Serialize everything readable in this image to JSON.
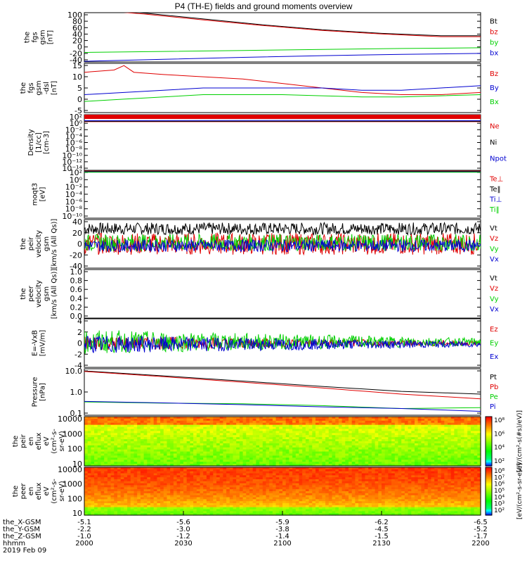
{
  "title": "P4 (TH-E) fields and ground moments overview",
  "colors": {
    "black": "#000000",
    "red": "#e00000",
    "green": "#00d000",
    "blue": "#0000d0"
  },
  "chart_data": [
    {
      "type": "line",
      "panel": "fgs",
      "ylabel": [
        "the",
        "fgs",
        "gsm",
        "[nT]"
      ],
      "ytick_labels": [
        "100",
        "80",
        "60",
        "40",
        "20",
        "0",
        "-20",
        "-40"
      ],
      "ylim": [
        -45,
        105
      ],
      "series": [
        {
          "name": "Bt",
          "color": "black",
          "points": [
            [
              0,
              118
            ],
            [
              30,
              104
            ],
            [
              60,
              86
            ],
            [
              90,
              68
            ],
            [
              120,
              53
            ],
            [
              150,
              42
            ],
            [
              180,
              35
            ],
            [
              200,
              35
            ]
          ]
        },
        {
          "name": "bz",
          "color": "red",
          "points": [
            [
              0,
              116
            ],
            [
              30,
              101
            ],
            [
              60,
              83
            ],
            [
              90,
              66
            ],
            [
              120,
              51
            ],
            [
              150,
              40
            ],
            [
              180,
              32
            ],
            [
              200,
              32
            ]
          ]
        },
        {
          "name": "by",
          "color": "green",
          "points": [
            [
              0,
              -16
            ],
            [
              40,
              -13
            ],
            [
              80,
              -10
            ],
            [
              120,
              -7
            ],
            [
              160,
              -4
            ],
            [
              200,
              -2
            ]
          ]
        },
        {
          "name": "bx",
          "color": "blue",
          "points": [
            [
              0,
              -43
            ],
            [
              40,
              -37
            ],
            [
              80,
              -31
            ],
            [
              120,
              -26
            ],
            [
              160,
              -22
            ],
            [
              200,
              -19
            ]
          ]
        }
      ]
    },
    {
      "type": "line",
      "panel": "fgs-dsl",
      "ylabel": [
        "the",
        "fgs",
        "gsm",
        "-dsl",
        "[nT]"
      ],
      "ytick_labels": [
        "15",
        "10",
        "5",
        "0",
        "-5"
      ],
      "ylim": [
        -6,
        16
      ],
      "series": [
        {
          "name": "Bz",
          "color": "red",
          "points": [
            [
              0,
              12
            ],
            [
              15,
              13
            ],
            [
              20,
              15
            ],
            [
              25,
              12
            ],
            [
              40,
              11
            ],
            [
              60,
              10
            ],
            [
              80,
              9
            ],
            [
              100,
              7
            ],
            [
              120,
              5
            ],
            [
              140,
              3
            ],
            [
              160,
              2
            ],
            [
              180,
              2
            ],
            [
              200,
              3
            ]
          ]
        },
        {
          "name": "By",
          "color": "blue",
          "points": [
            [
              0,
              2
            ],
            [
              20,
              3
            ],
            [
              40,
              4
            ],
            [
              60,
              5
            ],
            [
              80,
              5
            ],
            [
              100,
              5
            ],
            [
              120,
              5
            ],
            [
              140,
              4
            ],
            [
              160,
              4
            ],
            [
              180,
              5
            ],
            [
              200,
              6
            ]
          ]
        },
        {
          "name": "Bx",
          "color": "green",
          "points": [
            [
              0,
              -1
            ],
            [
              20,
              0
            ],
            [
              40,
              1
            ],
            [
              60,
              2
            ],
            [
              80,
              2
            ],
            [
              100,
              2
            ],
            [
              120,
              1.5
            ],
            [
              140,
              1
            ],
            [
              160,
              1
            ],
            [
              180,
              1.5
            ],
            [
              200,
              2
            ]
          ]
        }
      ]
    },
    {
      "type": "line",
      "panel": "density",
      "ylabel": [
        "Density",
        "[1/cc]",
        "[cm-3]"
      ],
      "ytick_labels": [
        "10²",
        "10⁰",
        "10⁻²",
        "10⁻⁴",
        "10⁻⁶",
        "10⁻⁸",
        "10⁻¹⁰",
        "10⁻¹²",
        "10⁻¹⁴"
      ],
      "log": true,
      "ylim_log10": [
        -14,
        2
      ],
      "series": [
        {
          "name": "Ne",
          "color": "red",
          "points": [
            [
              0,
              0
            ],
            [
              200,
              0
            ]
          ]
        },
        {
          "name": "Ni",
          "color": "black",
          "points": [
            [
              0,
              0.1
            ],
            [
              200,
              0.1
            ]
          ]
        },
        {
          "name": "Npot",
          "color": "blue",
          "points": [
            [
              0,
              0.3
            ],
            [
              100,
              0.35
            ],
            [
              200,
              0.3
            ]
          ]
        }
      ]
    },
    {
      "type": "line",
      "panel": "temperature",
      "ylabel": [
        "moqt3",
        "[eV]"
      ],
      "ytick_labels": [
        "10²",
        "10⁰",
        "10⁻²",
        "10⁻⁴",
        "10⁻⁶",
        "10⁻⁸",
        "10⁻¹⁰"
      ],
      "log": true,
      "ylim_log10": [
        -10,
        2
      ],
      "series": [
        {
          "name": "Te⊥",
          "color": "red",
          "points": [
            [
              0,
              1.8
            ],
            [
              200,
              1.8
            ]
          ]
        },
        {
          "name": "Te‖",
          "color": "black",
          "points": [
            [
              0,
              1.7
            ],
            [
              200,
              1.7
            ]
          ]
        },
        {
          "name": "Ti⊥",
          "color": "blue",
          "points": [
            [
              0,
              1.6
            ],
            [
              200,
              1.6
            ]
          ]
        },
        {
          "name": "Ti‖",
          "color": "green",
          "points": [
            [
              0,
              1.5
            ],
            [
              200,
              1.5
            ]
          ]
        }
      ]
    },
    {
      "type": "line",
      "panel": "peir velocity",
      "ylabel": [
        "the",
        "peir",
        "velocity",
        "gsm",
        "[km/s (All Qs)]"
      ],
      "ytick_labels": [
        "40",
        "20",
        "0",
        "-20",
        "-40"
      ],
      "ylim": [
        -40,
        40
      ],
      "series": [
        {
          "name": "Vt",
          "color": "black",
          "mean": 25,
          "amp": 10
        },
        {
          "name": "Vz",
          "color": "red",
          "mean": 0,
          "amp": 18
        },
        {
          "name": "Vy",
          "color": "green",
          "mean": 2,
          "amp": 14
        },
        {
          "name": "Vx",
          "color": "blue",
          "mean": -3,
          "amp": 10
        }
      ]
    },
    {
      "type": "line",
      "panel": "peer velocity",
      "ylabel": [
        "the",
        "peer",
        "velocity",
        "gsm",
        "[km/s (All Qs)]"
      ],
      "ytick_labels": [
        "1.0",
        "0.8",
        "0.6",
        "0.4",
        "0.2",
        "0.0"
      ],
      "ylim": [
        0,
        1
      ],
      "series": [
        {
          "name": "Vt",
          "color": "black"
        },
        {
          "name": "Vz",
          "color": "red"
        },
        {
          "name": "Vy",
          "color": "green"
        },
        {
          "name": "Vx",
          "color": "blue"
        }
      ]
    },
    {
      "type": "line",
      "panel": "E=-VxB",
      "ylabel": [
        "E=-VxB",
        "[mV/m]"
      ],
      "ytick_labels": [
        "4",
        "2",
        "0",
        "-2",
        "-4"
      ],
      "ylim": [
        -4,
        4
      ],
      "series": [
        {
          "name": "Ez",
          "color": "red",
          "mean": 0,
          "amp": 1.2
        },
        {
          "name": "Ey",
          "color": "green",
          "mean": 0.2,
          "amp": 2.0
        },
        {
          "name": "Ex",
          "color": "blue",
          "mean": -0.2,
          "amp": 1.5
        }
      ]
    },
    {
      "type": "line",
      "panel": "pressure",
      "ylabel": [
        "Pressure",
        "[nPa]"
      ],
      "ytick_labels": [
        "10.0",
        "1.0",
        "0.1"
      ],
      "log": true,
      "ylim_log10": [
        -1,
        1.1
      ],
      "series": [
        {
          "name": "Pt",
          "color": "black",
          "points": [
            [
              0,
              10
            ],
            [
              40,
              6
            ],
            [
              80,
              3.5
            ],
            [
              120,
              2
            ],
            [
              160,
              1.2
            ],
            [
              200,
              0.9
            ]
          ]
        },
        {
          "name": "Pb",
          "color": "red",
          "points": [
            [
              0,
              9.5
            ],
            [
              40,
              5.5
            ],
            [
              80,
              3.1
            ],
            [
              120,
              1.7
            ],
            [
              160,
              0.9
            ],
            [
              200,
              0.55
            ]
          ]
        },
        {
          "name": "Pe",
          "color": "green",
          "points": [
            [
              0,
              0.4
            ],
            [
              40,
              0.35
            ],
            [
              80,
              0.33
            ],
            [
              120,
              0.27
            ],
            [
              160,
              0.2
            ],
            [
              200,
              0.22
            ]
          ]
        },
        {
          "name": "Pi",
          "color": "blue",
          "points": [
            [
              0,
              0.42
            ],
            [
              40,
              0.36
            ],
            [
              80,
              0.3
            ],
            [
              120,
              0.24
            ],
            [
              160,
              0.2
            ],
            [
              200,
              0.15
            ]
          ]
        }
      ]
    },
    {
      "type": "heatmap",
      "panel": "peir en eflux",
      "ylabel": [
        "the",
        "peir",
        "en",
        "eflux",
        "eV",
        "(cm²-s-",
        "sr-eV)"
      ],
      "ytick_labels": [
        "10000",
        "1000",
        "100",
        "10"
      ]
    },
    {
      "type": "heatmap",
      "panel": "peer en eflux",
      "ylabel": [
        "the",
        "peer",
        "en",
        "eflux",
        "eV",
        "(cm²-s-",
        "sr-eV)"
      ],
      "ytick_labels": [
        "10000",
        "1000",
        "100",
        "10"
      ]
    }
  ],
  "colorbar": {
    "label": "[eV/(cm²-s-sr-eV)]",
    "upper_label": "[eV/(cm²-s(#s)/eV)]",
    "ticks_upper": [
      "10⁸",
      "10⁶",
      "10⁴",
      "10²"
    ],
    "ticks_lower": [
      "10⁸",
      "10⁷",
      "10⁶",
      "10⁵",
      "10⁴",
      "10³",
      "10²"
    ]
  },
  "xaxis": {
    "rows": [
      {
        "label": "the_X-GSM",
        "values": [
          "-5.1",
          "-5.6",
          "-5.9",
          "-6.2",
          "-6.5"
        ]
      },
      {
        "label": "the_Y-GSM",
        "values": [
          "-2.2",
          "-3.0",
          "-3.8",
          "-4.5",
          "-5.2"
        ]
      },
      {
        "label": "the_Z-GSM",
        "values": [
          "-1.0",
          "-1.2",
          "-1.4",
          "-1.5",
          "-1.7"
        ]
      },
      {
        "label": "hhmm",
        "values": [
          "2000",
          "2030",
          "2100",
          "2130",
          "2200"
        ]
      }
    ],
    "date": "2019 Feb 09"
  }
}
